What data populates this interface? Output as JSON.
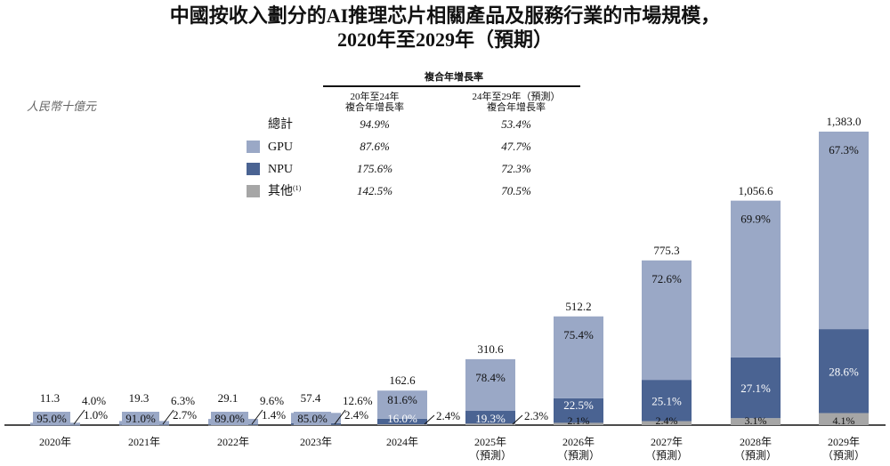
{
  "chart_data": {
    "type": "bar",
    "stacked": true,
    "title": "中國按收入劃分的AI推理芯片相關產品及服務行業的市場規模，",
    "subtitle": "2020年至2029年（預期）",
    "unit_label": "人民幣十億元",
    "categories": [
      [
        "2020年",
        ""
      ],
      [
        "2021年",
        ""
      ],
      [
        "2022年",
        ""
      ],
      [
        "2023年",
        ""
      ],
      [
        "2024年",
        ""
      ],
      [
        "2025年",
        "（預測）"
      ],
      [
        "2026年",
        "（預測）"
      ],
      [
        "2027年",
        "（預測）"
      ],
      [
        "2028年",
        "（預測）"
      ],
      [
        "2029年",
        "（預測）"
      ]
    ],
    "totals": [
      "11.3",
      "19.3",
      "29.1",
      "57.4",
      "162.6",
      "310.6",
      "512.2",
      "775.3",
      "1,056.6",
      "1,383.0"
    ],
    "total_values": [
      11.3,
      19.3,
      29.1,
      57.4,
      162.6,
      310.6,
      512.2,
      775.3,
      1056.6,
      1383.0
    ],
    "series": [
      {
        "name": "GPU",
        "color": "#9aa8c6",
        "share_pct": [
          95.0,
          91.0,
          89.0,
          85.0,
          81.6,
          78.4,
          75.4,
          72.6,
          69.9,
          67.3
        ]
      },
      {
        "name": "NPU",
        "color": "#4a6392",
        "share_pct": [
          4.0,
          6.3,
          9.6,
          12.6,
          16.0,
          19.3,
          22.5,
          25.1,
          27.1,
          28.6
        ]
      },
      {
        "name": "其他",
        "color": "#a6a6a6",
        "share_pct": [
          1.0,
          2.7,
          1.4,
          2.4,
          2.4,
          2.3,
          2.1,
          2.4,
          3.1,
          4.1
        ]
      }
    ],
    "legend": {
      "header": "複合年增長率",
      "col1": [
        "20年至24年",
        "複合年增長率"
      ],
      "col2": [
        "24年至29年（預測）",
        "複合年增長率"
      ],
      "rows": [
        {
          "label": "總計",
          "sup": "",
          "c1": "94.9%",
          "c2": "53.4%"
        },
        {
          "label": "GPU",
          "sup": "",
          "c1": "87.6%",
          "c2": "47.7%",
          "color": "#9aa8c6"
        },
        {
          "label": "NPU",
          "sup": "",
          "c1": "175.6%",
          "c2": "72.3%",
          "color": "#4a6392"
        },
        {
          "label": "其他",
          "sup": "(1)",
          "c1": "142.5%",
          "c2": "70.5%",
          "color": "#a6a6a6"
        }
      ]
    },
    "ylim": [
      0,
      1383.0
    ],
    "grid": false
  }
}
